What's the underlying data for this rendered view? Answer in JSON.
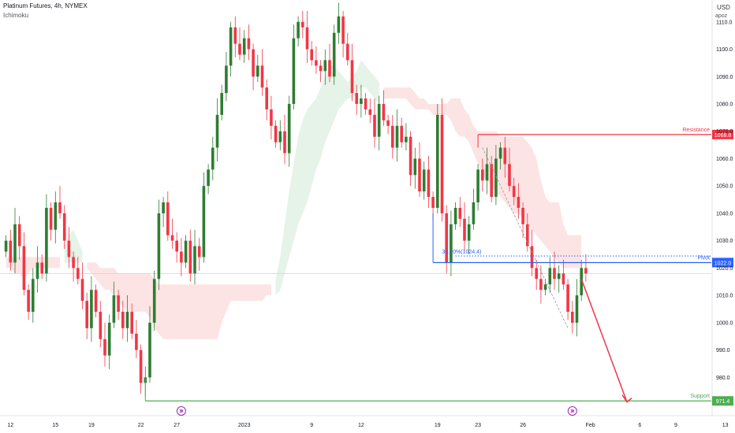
{
  "header": {
    "symbol_line": "Platinum Futures, 4h, NYMEX",
    "indicator": "Ichimoku",
    "currency": "USD",
    "scale_label": "apoz"
  },
  "chart_data": {
    "type": "candlestick",
    "ylim": [
      966,
      1118
    ],
    "y_ticks": [
      1110.0,
      1100.0,
      1090.0,
      1080.0,
      1070.0,
      1060.0,
      1050.0,
      1040.0,
      1030.0,
      1020.0,
      1010.0,
      1000.0,
      990.0,
      980.0
    ],
    "x_ticks": [
      {
        "label": "12",
        "i": 1
      },
      {
        "label": "15",
        "i": 11
      },
      {
        "label": "19",
        "i": 19
      },
      {
        "label": "22",
        "i": 30
      },
      {
        "label": "27",
        "i": 38
      },
      {
        "label": "2023",
        "i": 53
      },
      {
        "label": "9",
        "i": 68
      },
      {
        "label": "12",
        "i": 79
      },
      {
        "label": "19",
        "i": 96
      },
      {
        "label": "23",
        "i": 105
      },
      {
        "label": "26",
        "i": 115
      },
      {
        "label": "Feb",
        "i": 130
      },
      {
        "label": "6",
        "i": 141
      },
      {
        "label": "9",
        "i": 149
      },
      {
        "label": "13",
        "i": 160
      }
    ],
    "closes": [
      1030,
      1022,
      1036,
      1028,
      1012,
      1004,
      1016,
      1022,
      1018,
      1042,
      1034,
      1044,
      1040,
      1030,
      1024,
      1020,
      1016,
      1008,
      998,
      1012,
      1004,
      994,
      988,
      1000,
      1010,
      1004,
      998,
      1004,
      996,
      990,
      978,
      980,
      1000,
      1016,
      1040,
      1044,
      1032,
      1030,
      1026,
      1022,
      1030,
      1018,
      1028,
      1024,
      1050,
      1056,
      1064,
      1076,
      1084,
      1094,
      1108,
      1102,
      1098,
      1104,
      1100,
      1090,
      1094,
      1086,
      1078,
      1072,
      1066,
      1070,
      1062,
      1080,
      1104,
      1110,
      1108,
      1100,
      1096,
      1094,
      1092,
      1096,
      1090,
      1106,
      1112,
      1102,
      1096,
      1084,
      1080,
      1082,
      1078,
      1076,
      1068,
      1080,
      1074,
      1072,
      1064,
      1072,
      1066,
      1068,
      1054,
      1060,
      1048,
      1056,
      1046,
      1042,
      1076,
      1040,
      1022,
      1036,
      1042,
      1038,
      1030,
      1036,
      1044,
      1056,
      1052,
      1058,
      1046,
      1060,
      1064,
      1058,
      1050,
      1046,
      1042,
      1036,
      1028,
      1020,
      1016,
      1012,
      1014,
      1020,
      1016,
      1018,
      1014,
      1004,
      1000,
      1010,
      1020,
      1018
    ],
    "ichimoku_cloud": {
      "green_segments": [
        {
          "from": 13,
          "to": 17,
          "top": [
            1028,
            1032,
            1034,
            1030,
            1026
          ],
          "bottom": [
            1022,
            1022,
            1022,
            1022,
            1022
          ]
        },
        {
          "from": 60,
          "to": 83,
          "top": [
            1016,
            1024,
            1036,
            1048,
            1058,
            1068,
            1074,
            1078,
            1080,
            1082,
            1086,
            1090,
            1094,
            1094,
            1092,
            1090,
            1088,
            1090,
            1092,
            1096,
            1094,
            1092,
            1090,
            1088
          ],
          "bottom": [
            1010,
            1012,
            1018,
            1024,
            1030,
            1036,
            1040,
            1044,
            1050,
            1056,
            1060,
            1066,
            1070,
            1074,
            1078,
            1080,
            1082,
            1082,
            1084,
            1086,
            1086,
            1084,
            1082,
            1080
          ]
        }
      ],
      "red_segments": [
        {
          "from": 0,
          "to": 12,
          "top": [
            1024,
            1024,
            1024,
            1024,
            1024,
            1024,
            1024,
            1024,
            1024,
            1024,
            1024,
            1024,
            1024
          ],
          "bottom": [
            1020,
            1020,
            1018,
            1018,
            1016,
            1018,
            1020,
            1020,
            1020,
            1020,
            1020,
            1020,
            1020
          ]
        },
        {
          "from": 18,
          "to": 59,
          "top": [
            1022,
            1022,
            1022,
            1020,
            1020,
            1020,
            1020,
            1018,
            1018,
            1018,
            1018,
            1018,
            1018,
            1018,
            1018,
            1016,
            1014,
            1014,
            1014,
            1014,
            1014,
            1014,
            1014,
            1014,
            1014,
            1014,
            1014,
            1014,
            1014,
            1014,
            1014,
            1014,
            1014,
            1014,
            1014,
            1014,
            1014,
            1014,
            1014,
            1014,
            1014,
            1014
          ],
          "bottom": [
            1020,
            1018,
            1016,
            1014,
            1012,
            1012,
            1010,
            1008,
            1006,
            1004,
            1004,
            1004,
            1004,
            1004,
            1002,
            998,
            996,
            994,
            994,
            994,
            994,
            994,
            994,
            994,
            994,
            994,
            994,
            994,
            994,
            994,
            1000,
            1004,
            1008,
            1008,
            1008,
            1008,
            1008,
            1008,
            1008,
            1008,
            1010,
            1010
          ]
        },
        {
          "from": 84,
          "to": 128,
          "top": [
            1086,
            1086,
            1086,
            1086,
            1086,
            1086,
            1086,
            1084,
            1082,
            1082,
            1080,
            1080,
            1080,
            1080,
            1080,
            1082,
            1082,
            1082,
            1078,
            1076,
            1072,
            1070,
            1070,
            1070,
            1070,
            1070,
            1068,
            1068,
            1068,
            1068,
            1068,
            1068,
            1066,
            1064,
            1060,
            1052,
            1046,
            1044,
            1044,
            1044,
            1036,
            1032,
            1032,
            1032,
            1032
          ],
          "bottom": [
            1082,
            1082,
            1082,
            1082,
            1082,
            1082,
            1080,
            1078,
            1078,
            1078,
            1078,
            1076,
            1076,
            1076,
            1076,
            1074,
            1070,
            1068,
            1068,
            1066,
            1062,
            1058,
            1054,
            1052,
            1050,
            1048,
            1046,
            1044,
            1042,
            1040,
            1040,
            1038,
            1036,
            1034,
            1032,
            1030,
            1028,
            1026,
            1024,
            1022,
            1020,
            1020,
            1020,
            1020,
            1020
          ]
        }
      ]
    },
    "levels": [
      {
        "name": "Resistance",
        "value": 1068.8,
        "label": "1068.8",
        "color": "#f23645"
      },
      {
        "name": "Pivot",
        "value": 1022.0,
        "label": "1022.0",
        "color": "#2962ff"
      },
      {
        "name": "Support",
        "value": 971.4,
        "label": "971.4",
        "color": "#4caf50"
      }
    ],
    "fib_label": "38.20%(1024.4)",
    "fib_value": 1024.4,
    "colors": {
      "up": "#089981",
      "down": "#f23645",
      "up_body": "#2e7d32",
      "cloud_green": "#e5f3e8",
      "cloud_red": "#fde4e4"
    }
  }
}
